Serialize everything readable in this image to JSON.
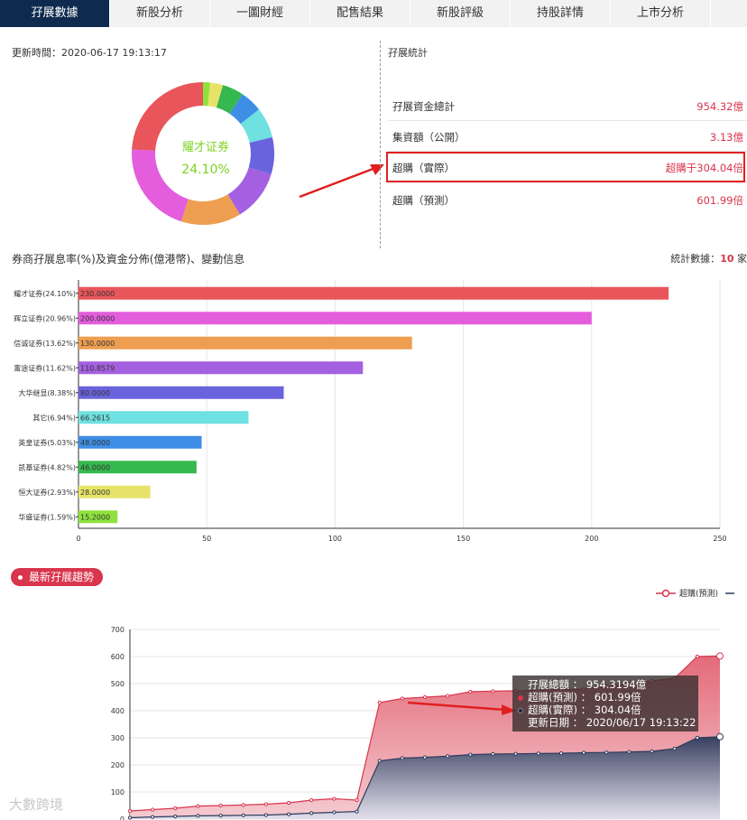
{
  "tabs": [
    {
      "label": "孖展數據",
      "active": true
    },
    {
      "label": "新股分析"
    },
    {
      "label": "一圖財經"
    },
    {
      "label": "配售結果"
    },
    {
      "label": "新股評級"
    },
    {
      "label": "持股詳情"
    },
    {
      "label": "上市分析"
    }
  ],
  "update_time": "更新時間：2020-06-17 19:13:17",
  "stats": {
    "title": "孖展統計",
    "rows": [
      {
        "label": "孖展資金總計",
        "value": "954.32億"
      },
      {
        "label": "集資額（公開）",
        "value": "3.13億"
      },
      {
        "label": "超購（實際）",
        "value": "超購于304.04倍"
      },
      {
        "label": "超購（預測）",
        "value": "601.99倍"
      }
    ]
  },
  "donut": {
    "center_name": "耀才证券",
    "center_pct": "24.10%"
  },
  "broker_section": {
    "title": "券商孖展息率(%)及資金分佈(億港幣)、變動信息",
    "count_label": "統計數據：",
    "count_value": "10",
    "count_unit": "家"
  },
  "chart_data": [
    {
      "type": "bar",
      "orientation": "horizontal",
      "categories": [
        "耀才证券(24.10%)",
        "辉立证券(20.96%)",
        "信诚证券(13.62%)",
        "富途证券(11.62%)",
        "大华继显(8.38%)",
        "其它(6.94%)",
        "英皇证券(5.03%)",
        "凯基证券(4.82%)",
        "恒大证券(2.93%)",
        "华盛证券(1.59%)"
      ],
      "values": [
        230,
        200,
        130,
        110.8579,
        80,
        66.2615,
        48,
        46,
        28,
        15.2
      ],
      "value_labels": [
        "230.0000",
        "200.0000",
        "130.0000",
        "110.8579",
        "80.0000",
        "66.2615",
        "48.0000",
        "46.0000",
        "28.0000",
        "15.2000"
      ],
      "colors": [
        "#e8555a",
        "#e35ddd",
        "#ee9e50",
        "#a460e0",
        "#6a63de",
        "#6ee1e0",
        "#3f8ee6",
        "#35b84e",
        "#e6e368",
        "#8ee23d"
      ],
      "xlim": [
        0,
        250
      ],
      "xticks": [
        "0",
        "50",
        "100",
        "150",
        "200",
        "250"
      ],
      "grid": true
    },
    {
      "type": "pie",
      "donut": true,
      "labels": [
        "耀才证券",
        "辉立证券",
        "信诚证券",
        "富途证券",
        "大华继显",
        "其它",
        "英皇证券",
        "凯基证券",
        "恒大证券",
        "华盛证券"
      ],
      "values": [
        24.1,
        20.96,
        13.62,
        11.62,
        8.38,
        6.94,
        5.03,
        4.82,
        2.93,
        1.59
      ],
      "colors": [
        "#e8555a",
        "#e35ddd",
        "#ee9e50",
        "#a460e0",
        "#6a63de",
        "#6ee1e0",
        "#3f8ee6",
        "#35b84e",
        "#e6e368",
        "#8ee23d"
      ]
    },
    {
      "type": "area",
      "series": [
        {
          "name": "超購(預測)",
          "color": "#d9354d",
          "values": [
            30,
            35,
            40,
            48,
            50,
            52,
            55,
            60,
            70,
            75,
            70,
            430,
            445,
            450,
            455,
            470,
            472,
            474,
            476,
            478,
            480,
            490,
            500,
            510,
            520,
            600,
            601.99
          ]
        },
        {
          "name": "超購(實際)",
          "color": "#2e3a5c",
          "values": [
            5,
            8,
            10,
            12,
            13,
            14,
            15,
            18,
            22,
            25,
            28,
            215,
            225,
            228,
            232,
            238,
            240,
            241,
            242,
            243,
            245,
            246,
            248,
            250,
            260,
            300,
            304.04
          ]
        }
      ],
      "ylim": [
        0,
        700
      ],
      "yticks": [
        "0",
        "100",
        "200",
        "300",
        "400",
        "500",
        "600",
        "700"
      ],
      "grid": true
    }
  ],
  "trend": {
    "badge": "最新孖展趨勢",
    "legend_label": "超購(預測)",
    "tooltip": {
      "total_label": "孖展總額",
      "total_value": "954.3194億",
      "pred_label": "超購(預測)",
      "pred_value": "601.99倍",
      "actual_label": "超購(實際)",
      "actual_value": "304.04倍",
      "date_label": "更新日期",
      "date_value": "2020/06/17 19:13:22"
    }
  },
  "watermark": "大數跨境"
}
